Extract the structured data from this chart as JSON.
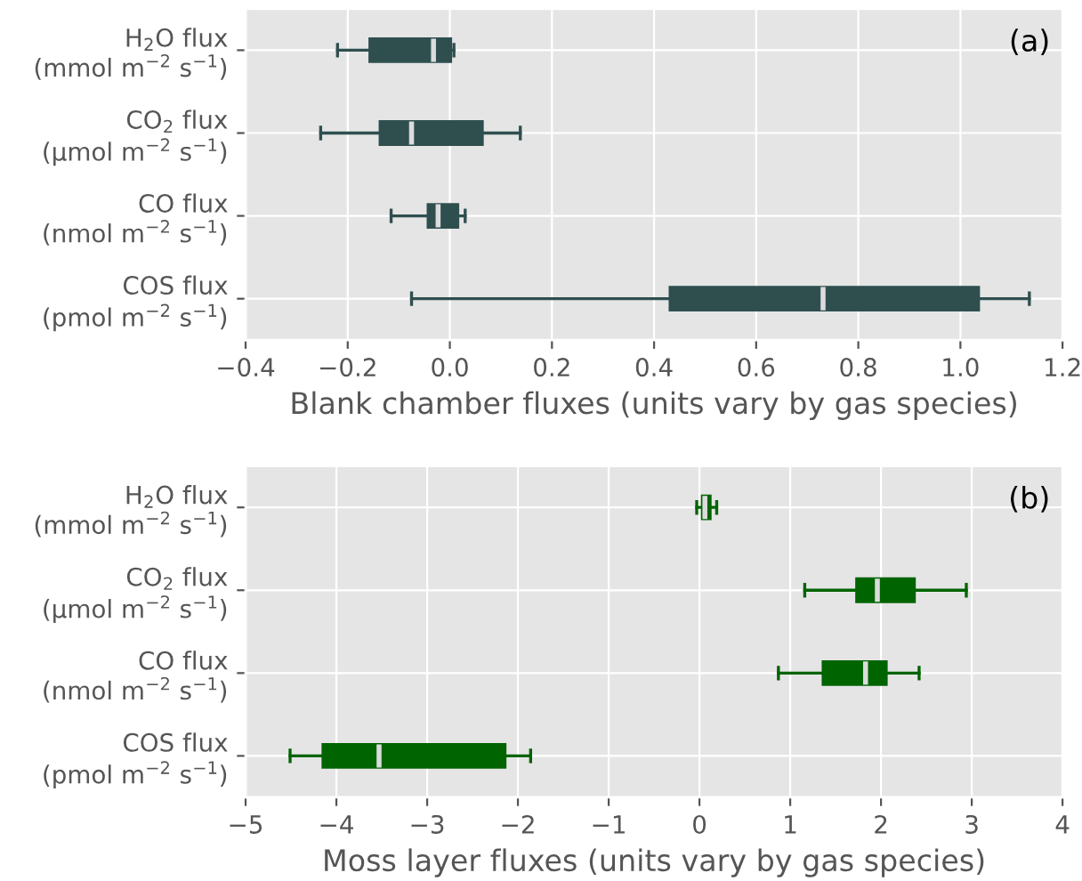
{
  "chart_data": [
    {
      "type": "box",
      "orientation": "horizontal",
      "color": "#2f4f4f",
      "categories": [
        "H$_{2}$O flux\n(mmol m$^{−2}$ s$^{−1}$)",
        "CO$_{2}$ flux\n(μmol m$^{−2}$ s$^{−1}$)",
        "CO flux\n(nmol m$^{−2}$ s$^{−1}$)",
        "COS flux\n(pmol m$^{−2}$ s$^{−1}$)"
      ],
      "boxes": [
        {
          "low": -0.22,
          "q1": -0.157,
          "median": -0.032,
          "q3": 0.002,
          "high": 0.008
        },
        {
          "low": -0.253,
          "q1": -0.137,
          "median": -0.075,
          "q3": 0.064,
          "high": 0.138
        },
        {
          "low": -0.115,
          "q1": -0.043,
          "median": -0.023,
          "q3": 0.016,
          "high": 0.03
        },
        {
          "low": -0.075,
          "q1": 0.431,
          "median": 0.731,
          "q3": 1.036,
          "high": 1.135
        }
      ],
      "xlim": [
        -0.4,
        1.2
      ],
      "xticks": [
        {
          "value": -0.4,
          "label": "−0.4"
        },
        {
          "value": -0.2,
          "label": "−0.2"
        },
        {
          "value": 0,
          "label": "0.0"
        },
        0.2,
        0.4,
        0.6,
        0.8,
        {
          "value": 1,
          "label": "1.0"
        },
        1.2
      ],
      "xlabel": "Blank chamber fluxes (units vary by gas species)",
      "annotations": [
        "(a)"
      ],
      "grid": true
    },
    {
      "type": "box",
      "orientation": "horizontal",
      "color": "#006400",
      "categories": [
        "H$_{2}$O flux\n(mmol m$^{−2}$ s$^{−1}$)",
        "CO$_{2}$ flux\n(μmol m$^{−2}$ s$^{−1}$)",
        "CO flux\n(nmol m$^{−2}$ s$^{−1}$)",
        "COS flux\n(pmol m$^{−2}$ s$^{−1}$)"
      ],
      "boxes": [
        {
          "low": -0.03,
          "q1": 0.03,
          "median": 0.06,
          "q3": 0.12,
          "high": 0.19
        },
        {
          "low": 1.16,
          "q1": 1.73,
          "median": 1.96,
          "q3": 2.37,
          "high": 2.94
        },
        {
          "low": 0.87,
          "q1": 1.36,
          "median": 1.83,
          "q3": 2.06,
          "high": 2.42
        },
        {
          "low": -4.51,
          "q1": -4.15,
          "median": -3.53,
          "q3": -2.14,
          "high": -1.86
        }
      ],
      "xlim": [
        -5,
        4
      ],
      "xticks": [
        {
          "value": -5,
          "label": "−5"
        },
        {
          "value": -4,
          "label": "−4"
        },
        {
          "value": -3,
          "label": "−3"
        },
        {
          "value": -2,
          "label": "−2"
        },
        {
          "value": -1,
          "label": "−1"
        },
        0,
        1,
        2,
        3,
        4
      ],
      "xlabel": "Moss layer fluxes (units vary by gas species)",
      "annotations": [
        "(b)"
      ],
      "grid": true
    }
  ]
}
